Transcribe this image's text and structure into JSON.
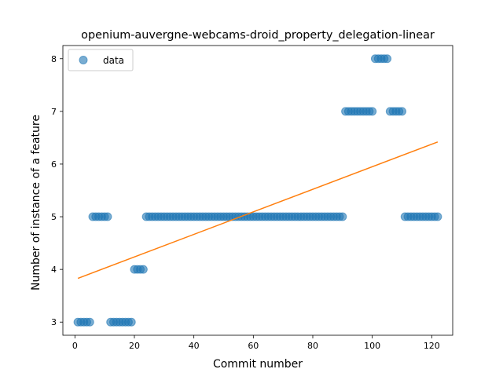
{
  "chart_data": {
    "type": "scatter",
    "title": "openium-auvergne-webcams-droid_property_delegation-linear",
    "xlabel": "Commit number",
    "ylabel": "Number of instance of a feature",
    "xlim": [
      -4.05,
      127.05
    ],
    "ylim": [
      2.75,
      8.25
    ],
    "xticks": [
      0,
      20,
      40,
      60,
      80,
      100,
      120
    ],
    "yticks": [
      3,
      4,
      5,
      6,
      7,
      8
    ],
    "grid": false,
    "legend_position": "upper left",
    "series": [
      {
        "name": "data",
        "kind": "scatter",
        "color": "#1f77b4",
        "x": [
          1,
          2,
          3,
          4,
          5,
          6,
          7,
          8,
          9,
          10,
          11,
          12,
          13,
          14,
          15,
          16,
          17,
          18,
          19,
          20,
          21,
          22,
          23,
          24,
          25,
          26,
          27,
          28,
          29,
          30,
          31,
          32,
          33,
          34,
          35,
          36,
          37,
          38,
          39,
          40,
          41,
          42,
          43,
          44,
          45,
          46,
          47,
          48,
          49,
          50,
          51,
          52,
          53,
          54,
          55,
          56,
          57,
          58,
          59,
          60,
          61,
          62,
          63,
          64,
          65,
          66,
          67,
          68,
          69,
          70,
          71,
          72,
          73,
          74,
          75,
          76,
          77,
          78,
          79,
          80,
          81,
          82,
          83,
          84,
          85,
          86,
          87,
          88,
          89,
          90,
          91,
          92,
          93,
          94,
          95,
          96,
          97,
          98,
          99,
          100,
          101,
          102,
          103,
          104,
          105,
          106,
          107,
          108,
          109,
          110,
          111,
          112,
          113,
          114,
          115,
          116,
          117,
          118,
          119,
          120,
          121,
          122
        ],
        "y": [
          3,
          3,
          3,
          3,
          3,
          5,
          5,
          5,
          5,
          5,
          5,
          3,
          3,
          3,
          3,
          3,
          3,
          3,
          3,
          4,
          4,
          4,
          4,
          5,
          5,
          5,
          5,
          5,
          5,
          5,
          5,
          5,
          5,
          5,
          5,
          5,
          5,
          5,
          5,
          5,
          5,
          5,
          5,
          5,
          5,
          5,
          5,
          5,
          5,
          5,
          5,
          5,
          5,
          5,
          5,
          5,
          5,
          5,
          5,
          5,
          5,
          5,
          5,
          5,
          5,
          5,
          5,
          5,
          5,
          5,
          5,
          5,
          5,
          5,
          5,
          5,
          5,
          5,
          5,
          5,
          5,
          5,
          5,
          5,
          5,
          5,
          5,
          5,
          5,
          5,
          7,
          7,
          7,
          7,
          7,
          7,
          7,
          7,
          7,
          7,
          8,
          8,
          8,
          8,
          8,
          7,
          7,
          7,
          7,
          7,
          5,
          5,
          5,
          5,
          5,
          5,
          5,
          5,
          5,
          5,
          5,
          5
        ]
      },
      {
        "kind": "line",
        "color": "#ff7f0e",
        "x": [
          1,
          122
        ],
        "y": [
          3.83,
          6.42
        ]
      }
    ]
  }
}
